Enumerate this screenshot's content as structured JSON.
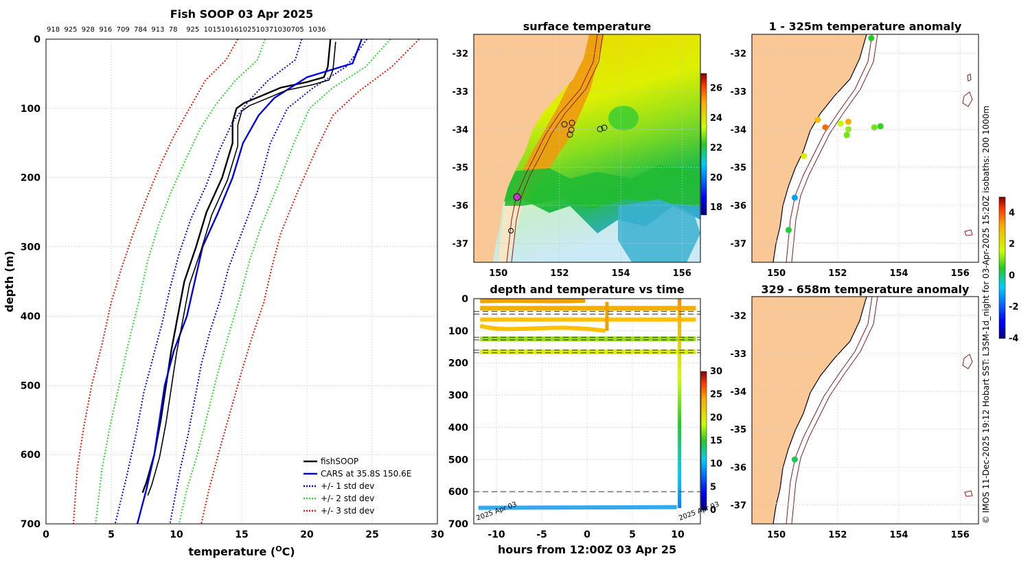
{
  "chart_data": [
    {
      "id": "profile",
      "type": "line",
      "title": "Fish SOOP 03 Apr 2025",
      "top_labels": [
        "918",
        "925",
        "928",
        "916",
        "709",
        "784",
        "913",
        "78",
        "925",
        "1015",
        "1016",
        "1025",
        "1037",
        "1030",
        "705",
        "1036"
      ],
      "xlabel": "temperature (",
      "xlabel_sup": "O",
      "xlabel_end": "C)",
      "ylabel": "depth (m)",
      "xlim": [
        0,
        30
      ],
      "ylim": [
        0,
        700
      ],
      "xticks": [
        "0",
        "5",
        "10",
        "15",
        "20",
        "25",
        "30"
      ],
      "yticks": [
        "0",
        "100",
        "200",
        "300",
        "400",
        "500",
        "600",
        "700"
      ],
      "legend": [
        {
          "label": "fishSOOP",
          "color": "#000000",
          "style": "solid"
        },
        {
          "label": "CARS at 35.8S 150.6E",
          "color": "#0000ee",
          "style": "solid"
        },
        {
          "label": "+/- 1 std dev",
          "color": "#0000ee",
          "style": "dotted"
        },
        {
          "label": "+/- 2 std dev",
          "color": "#22dd22",
          "style": "dotted"
        },
        {
          "label": "+/- 3 std dev",
          "color": "#ee1100",
          "style": "dotted"
        }
      ],
      "series": [
        {
          "name": "fishSOOP",
          "color": "#000000",
          "points": [
            [
              21.8,
              0
            ],
            [
              21.7,
              20
            ],
            [
              21.6,
              40
            ],
            [
              21.3,
              55
            ],
            [
              20,
              62
            ],
            [
              18,
              70
            ],
            [
              16.5,
              82
            ],
            [
              15.2,
              92
            ],
            [
              14.6,
              100
            ],
            [
              14.3,
              120
            ],
            [
              14.3,
              150
            ],
            [
              13.9,
              175
            ],
            [
              13.5,
              200
            ],
            [
              12.3,
              250
            ],
            [
              11.5,
              300
            ],
            [
              10.6,
              350
            ],
            [
              10.1,
              400
            ],
            [
              9.6,
              450
            ],
            [
              9.2,
              500
            ],
            [
              8.8,
              550
            ],
            [
              8.3,
              600
            ],
            [
              7.7,
              640
            ],
            [
              7.4,
              655
            ]
          ]
        },
        {
          "name": "CARS",
          "color": "#0000ee",
          "points": [
            [
              24.2,
              0
            ],
            [
              23.5,
              35
            ],
            [
              20,
              55
            ],
            [
              17.5,
              85
            ],
            [
              16.3,
              110
            ],
            [
              15.1,
              150
            ],
            [
              14.3,
              200
            ],
            [
              13.2,
              250
            ],
            [
              12,
              300
            ],
            [
              11.4,
              350
            ],
            [
              10.8,
              400
            ],
            [
              9.8,
              450
            ],
            [
              9.1,
              500
            ],
            [
              8.7,
              550
            ],
            [
              8.3,
              600
            ],
            [
              7.7,
              650
            ],
            [
              7.0,
              700
            ]
          ]
        },
        {
          "name": "+1 std",
          "color": "#0000ee",
          "dotted": true,
          "points": [
            [
              24.6,
              0
            ],
            [
              23,
              40
            ],
            [
              20.5,
              70
            ],
            [
              18.5,
              100
            ],
            [
              17.2,
              150
            ],
            [
              16.2,
              220
            ],
            [
              15,
              280
            ],
            [
              14,
              330
            ],
            [
              13.3,
              380
            ],
            [
              12.6,
              420
            ],
            [
              11.9,
              470
            ],
            [
              11.4,
              520
            ],
            [
              10.9,
              570
            ],
            [
              10.3,
              620
            ],
            [
              9.5,
              700
            ]
          ]
        },
        {
          "name": "-1 std",
          "color": "#0000ee",
          "dotted": true,
          "points": [
            [
              19.6,
              0
            ],
            [
              19.1,
              30
            ],
            [
              17,
              60
            ],
            [
              15.5,
              90
            ],
            [
              14.3,
              120
            ],
            [
              13.3,
              160
            ],
            [
              12.3,
              210
            ],
            [
              11.1,
              260
            ],
            [
              10.2,
              310
            ],
            [
              9.5,
              360
            ],
            [
              8.9,
              410
            ],
            [
              8.2,
              460
            ],
            [
              7.5,
              510
            ],
            [
              6.9,
              570
            ],
            [
              6.2,
              630
            ],
            [
              5.3,
              700
            ]
          ]
        },
        {
          "name": "+2 std",
          "color": "#22dd22",
          "dotted": true,
          "points": [
            [
              26.4,
              0
            ],
            [
              24.5,
              40
            ],
            [
              22,
              70
            ],
            [
              20.2,
              100
            ],
            [
              19,
              150
            ],
            [
              17.8,
              210
            ],
            [
              16.5,
              270
            ],
            [
              15.6,
              320
            ],
            [
              14.9,
              370
            ],
            [
              14.1,
              420
            ],
            [
              13.2,
              480
            ],
            [
              12.4,
              540
            ],
            [
              11.6,
              600
            ],
            [
              10.8,
              650
            ],
            [
              10.2,
              700
            ]
          ]
        },
        {
          "name": "-2 std",
          "color": "#22dd22",
          "dotted": true,
          "points": [
            [
              16.8,
              0
            ],
            [
              16.2,
              30
            ],
            [
              14.5,
              60
            ],
            [
              13,
              95
            ],
            [
              11.8,
              130
            ],
            [
              10.8,
              170
            ],
            [
              9.6,
              220
            ],
            [
              8.6,
              270
            ],
            [
              7.8,
              320
            ],
            [
              7.1,
              380
            ],
            [
              6.3,
              440
            ],
            [
              5.6,
              500
            ],
            [
              4.9,
              560
            ],
            [
              4.3,
              620
            ],
            [
              3.8,
              700
            ]
          ]
        },
        {
          "name": "+3 std",
          "color": "#ee1100",
          "dotted": true,
          "points": [
            [
              28.6,
              0
            ],
            [
              26.5,
              40
            ],
            [
              24,
              75
            ],
            [
              22,
              110
            ],
            [
              20.7,
              160
            ],
            [
              19.3,
              220
            ],
            [
              18,
              280
            ],
            [
              17.3,
              330
            ],
            [
              16.7,
              380
            ],
            [
              15.8,
              430
            ],
            [
              15,
              480
            ],
            [
              14.1,
              540
            ],
            [
              13.2,
              600
            ],
            [
              12.5,
              650
            ],
            [
              11.9,
              700
            ]
          ]
        },
        {
          "name": "-3 std",
          "color": "#ee1100",
          "dotted": true,
          "points": [
            [
              14.7,
              0
            ],
            [
              13.8,
              30
            ],
            [
              12.2,
              60
            ],
            [
              11,
              100
            ],
            [
              9.8,
              140
            ],
            [
              8.8,
              180
            ],
            [
              7.7,
              230
            ],
            [
              6.7,
              280
            ],
            [
              5.8,
              330
            ],
            [
              5,
              380
            ],
            [
              4.3,
              440
            ],
            [
              3.5,
              500
            ],
            [
              2.9,
              560
            ],
            [
              2.4,
              620
            ],
            [
              2.1,
              700
            ]
          ]
        }
      ]
    },
    {
      "id": "sst",
      "type": "heatmap",
      "title": "surface temperature",
      "xticks": [
        "150",
        "152",
        "154",
        "156"
      ],
      "yticks": [
        "-32",
        "-33",
        "-34",
        "-35",
        "-36",
        "-37"
      ],
      "xlim": [
        149.2,
        156.6
      ],
      "ylim": [
        -37.5,
        -31.5
      ],
      "colorbar_ticks": [
        "18",
        "20",
        "22",
        "24",
        "26"
      ],
      "colorbar_range": [
        17.5,
        27
      ]
    },
    {
      "id": "depth_time",
      "type": "scatter",
      "title": "depth and temperature vs time",
      "xlabel": "hours from 12:00Z 03 Apr 25",
      "xticks": [
        "-10",
        "-5",
        "0",
        "5",
        "10"
      ],
      "yticks": [
        "0",
        "100",
        "200",
        "300",
        "400",
        "500",
        "600",
        "700"
      ],
      "xlim": [
        -12.5,
        12.5
      ],
      "ylim": [
        0,
        700
      ],
      "colorbar_ticks": [
        "0",
        "5",
        "10",
        "15",
        "20",
        "25",
        "30"
      ],
      "colorbar_range": [
        0,
        30
      ],
      "dashed_levels": [
        40,
        48,
        120,
        128,
        160,
        168,
        600
      ],
      "corner_labels": [
        "2025 Apr 03",
        "2025 Apr 03"
      ]
    },
    {
      "id": "anom_shallow",
      "type": "scatter",
      "title": "1 - 325m temperature anomaly",
      "xticks": [
        "150",
        "152",
        "154",
        "156"
      ],
      "yticks": [
        "-32",
        "-33",
        "-34",
        "-35",
        "-36",
        "-37"
      ],
      "xlim": [
        149.2,
        156.6
      ],
      "ylim": [
        -37.5,
        -31.5
      ],
      "points": [
        {
          "lon": 153.1,
          "lat": -31.6,
          "v": 0.5
        },
        {
          "lon": 151.35,
          "lat": -33.75,
          "v": 2.8
        },
        {
          "lon": 151.6,
          "lat": -33.95,
          "v": 3.8
        },
        {
          "lon": 152.1,
          "lat": -33.85,
          "v": 1.5
        },
        {
          "lon": 152.35,
          "lat": -33.8,
          "v": 3.2
        },
        {
          "lon": 152.35,
          "lat": -34.0,
          "v": 1.2
        },
        {
          "lon": 152.3,
          "lat": -34.15,
          "v": 1.0
        },
        {
          "lon": 153.2,
          "lat": -33.95,
          "v": 1.0
        },
        {
          "lon": 153.4,
          "lat": -33.92,
          "v": 0.6
        },
        {
          "lon": 150.9,
          "lat": -34.7,
          "v": 1.9
        },
        {
          "lon": 150.6,
          "lat": -35.8,
          "v": -1.2
        },
        {
          "lon": 150.4,
          "lat": -36.65,
          "v": 0.4
        }
      ]
    },
    {
      "id": "anom_deep",
      "type": "scatter",
      "title": "329 - 658m temperature anomaly",
      "xticks": [
        "150",
        "152",
        "154",
        "156"
      ],
      "yticks": [
        "-32",
        "-33",
        "-34",
        "-35",
        "-36",
        "-37"
      ],
      "xlim": [
        149.2,
        156.6
      ],
      "ylim": [
        -37.5,
        -31.5
      ],
      "points": [
        {
          "lon": 150.6,
          "lat": -35.8,
          "v": 0.2
        }
      ]
    },
    {
      "id": "anom_colorbar",
      "type": "heatmap",
      "colorbar_ticks": [
        "4",
        "2",
        "0",
        "-2",
        "-4"
      ],
      "colorbar_range": [
        -4,
        5
      ]
    }
  ],
  "footer": "© IMOS 11-Dec-2025 19:12 Hobart SST: L3SM-1d_night for 03-Apr-2025 15:20Z isobaths: 200  1000m",
  "colors": {
    "land": "#fac896",
    "grid": "#c8c8c8"
  }
}
